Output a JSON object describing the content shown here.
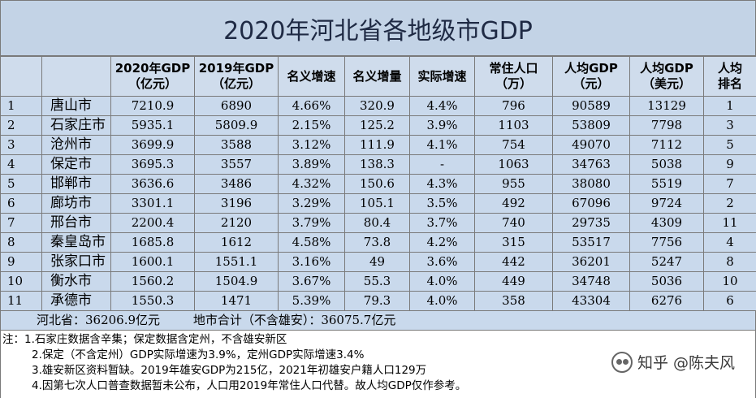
{
  "title": "2020年河北省各地级市GDP",
  "headers": [
    {
      "line1": "",
      "line2": ""
    },
    {
      "line1": "",
      "line2": ""
    },
    {
      "line1": "2020年GDP",
      "line2": "（亿元）"
    },
    {
      "line1": "2019年GDP",
      "line2": "（亿元）"
    },
    {
      "line1": "名义增速",
      "line2": ""
    },
    {
      "line1": "名义增量",
      "line2": ""
    },
    {
      "line1": "实际增速",
      "line2": ""
    },
    {
      "line1": "常住人口",
      "line2": "（万）"
    },
    {
      "line1": "人均GDP",
      "line2": "（元）"
    },
    {
      "line1": "人均GDP",
      "line2": "（美元）"
    },
    {
      "line1": "人均",
      "line2": "排名"
    }
  ],
  "rows": [
    [
      "1",
      "唐山市",
      "7210.9",
      "6890",
      "4.66%",
      "320.9",
      "4.4%",
      "796",
      "90589",
      "13129",
      "1"
    ],
    [
      "2",
      "石家庄市",
      "5935.1",
      "5809.9",
      "2.15%",
      "125.2",
      "3.9%",
      "1103",
      "53809",
      "7798",
      "3"
    ],
    [
      "3",
      "沧州市",
      "3699.9",
      "3588",
      "3.12%",
      "111.9",
      "4.1%",
      "754",
      "49070",
      "7112",
      "5"
    ],
    [
      "4",
      "保定市",
      "3695.3",
      "3557",
      "3.89%",
      "138.3",
      "-",
      "1063",
      "34763",
      "5038",
      "9"
    ],
    [
      "5",
      "邯郸市",
      "3636.6",
      "3486",
      "4.32%",
      "150.6",
      "4.3%",
      "955",
      "38080",
      "5519",
      "7"
    ],
    [
      "6",
      "廊坊市",
      "3301.1",
      "3196",
      "3.29%",
      "105.1",
      "3.5%",
      "492",
      "67096",
      "9724",
      "2"
    ],
    [
      "7",
      "邢台市",
      "2200.4",
      "2120",
      "3.79%",
      "80.4",
      "3.7%",
      "740",
      "29735",
      "4309",
      "11"
    ],
    [
      "8",
      "秦皇岛市",
      "1685.8",
      "1612",
      "4.58%",
      "73.8",
      "4.2%",
      "315",
      "53517",
      "7756",
      "4"
    ],
    [
      "9",
      "张家口市",
      "1600.1",
      "1551.1",
      "3.16%",
      "49",
      "3.6%",
      "442",
      "36201",
      "5247",
      "8"
    ],
    [
      "10",
      "衡水市",
      "1560.2",
      "1504.9",
      "3.67%",
      "55.3",
      "4.0%",
      "449",
      "34748",
      "5036",
      "10"
    ],
    [
      "11",
      "承德市",
      "1550.3",
      "1471",
      "5.39%",
      "79.3",
      "4.0%",
      "358",
      "43304",
      "6276",
      "6"
    ]
  ],
  "total": {
    "province": "河北省：36206.9亿元",
    "sum": "地市合计（不含雄安）：36075.7亿元"
  },
  "notes": [
    "注：1.石家庄数据含辛集；保定数据含定州，不含雄安新区",
    "2.保定（不含定州）GDP实际增速为3.9%，定州GDP实际增速3.4%",
    "3.雄安新区资料暂缺。2019年雄安GDP为215亿，2021年初雄安户籍人口129万",
    "4.因第七次人口普查数据暂未公布，人口用2019年常住人口代替。故人均GDP仅作参考。"
  ],
  "watermark": "知乎 @陈夫风",
  "colors": {
    "title_bg": "#c3d3e6",
    "cell_bg": "#c9d9ec",
    "border": "#7a7a7a"
  }
}
